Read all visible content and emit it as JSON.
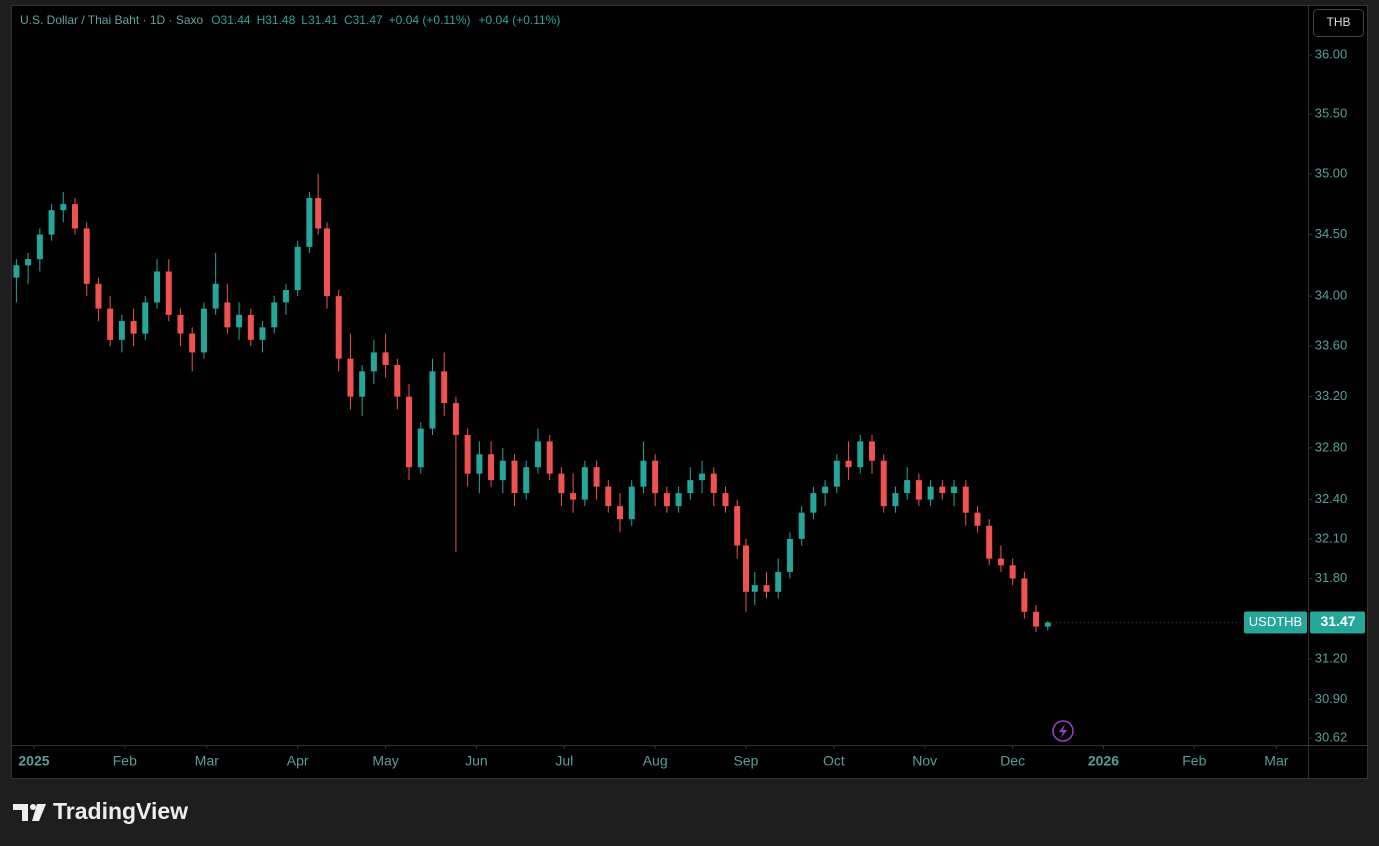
{
  "chart_data": {
    "type": "candlestick",
    "title": "U.S. Dollar / Thai Baht · 1D · Saxo",
    "legend_values": [
      "O31.44",
      "H31.48",
      "L31.41",
      "C31.47",
      "+0.04 (+0.11%)",
      "+0.04 (+0.11%)"
    ],
    "currency": "THB",
    "symbol": "USDTHB",
    "last_price": 31.47,
    "up_color": "#26a69a",
    "down_color": "#ef5350",
    "log_scale": true,
    "x": [
      -6,
      -2,
      2,
      6,
      10,
      14,
      18,
      22,
      26,
      30,
      34,
      38,
      42,
      46,
      50,
      54,
      58,
      62,
      66,
      70,
      74,
      78,
      82,
      86,
      90,
      94,
      97,
      100,
      104,
      108,
      112,
      116,
      120,
      124,
      128,
      132,
      136,
      140,
      144,
      148,
      152,
      156,
      160,
      164,
      168,
      172,
      176,
      180,
      184,
      188,
      192,
      196,
      200,
      204,
      208,
      212,
      216,
      220,
      224,
      228,
      232,
      236,
      240,
      243,
      246,
      250,
      254,
      258,
      262,
      266,
      270,
      274,
      278,
      282,
      286,
      290,
      294,
      298,
      302,
      306,
      310,
      314,
      318,
      322,
      326,
      330,
      334,
      338,
      342,
      346
    ],
    "open": [
      34.15,
      34.25,
      34.3,
      34.5,
      34.7,
      34.75,
      34.55,
      34.1,
      33.9,
      33.65,
      33.8,
      33.7,
      33.95,
      34.2,
      33.85,
      33.7,
      33.55,
      33.9,
      33.95,
      33.75,
      33.85,
      33.65,
      33.75,
      33.95,
      34.05,
      34.4,
      34.8,
      34.55,
      34.0,
      33.5,
      33.2,
      33.4,
      33.55,
      33.45,
      33.2,
      32.65,
      32.95,
      33.4,
      33.15,
      32.9,
      32.6,
      32.75,
      32.55,
      32.7,
      32.45,
      32.65,
      32.85,
      32.6,
      32.45,
      32.4,
      32.65,
      32.5,
      32.35,
      32.25,
      32.5,
      32.7,
      32.45,
      32.35,
      32.45,
      32.55,
      32.6,
      32.45,
      32.35,
      32.05,
      31.7,
      31.75,
      31.7,
      31.85,
      32.1,
      32.3,
      32.45,
      32.5,
      32.7,
      32.65,
      32.85,
      32.7,
      32.35,
      32.45,
      32.55,
      32.4,
      32.5,
      32.45,
      32.5,
      32.3,
      32.2,
      31.95,
      31.9,
      31.8,
      31.55,
      31.44
    ],
    "high": [
      34.3,
      34.35,
      34.55,
      34.75,
      34.85,
      34.8,
      34.6,
      34.15,
      34.0,
      33.85,
      33.9,
      34.0,
      34.3,
      34.3,
      33.9,
      33.75,
      33.95,
      34.35,
      34.1,
      33.95,
      33.9,
      33.8,
      34.0,
      34.1,
      34.45,
      34.85,
      35.0,
      34.6,
      34.05,
      33.7,
      33.45,
      33.65,
      33.7,
      33.5,
      33.3,
      33.0,
      33.5,
      33.55,
      33.2,
      32.95,
      32.85,
      32.85,
      32.8,
      32.75,
      32.7,
      32.95,
      32.9,
      32.65,
      32.6,
      32.7,
      32.7,
      32.55,
      32.45,
      32.55,
      32.85,
      32.75,
      32.5,
      32.5,
      32.65,
      32.7,
      32.65,
      32.5,
      32.4,
      32.1,
      31.85,
      31.85,
      31.95,
      32.15,
      32.35,
      32.5,
      32.55,
      32.75,
      32.85,
      32.9,
      32.9,
      32.75,
      32.5,
      32.65,
      32.6,
      32.55,
      32.55,
      32.55,
      32.55,
      32.35,
      32.25,
      32.05,
      31.95,
      31.85,
      31.6,
      31.48
    ],
    "low": [
      33.95,
      34.1,
      34.2,
      34.45,
      34.6,
      34.5,
      34.0,
      33.8,
      33.6,
      33.55,
      33.6,
      33.65,
      33.9,
      33.8,
      33.6,
      33.4,
      33.5,
      33.85,
      33.7,
      33.65,
      33.6,
      33.55,
      33.7,
      33.85,
      34.0,
      34.35,
      34.5,
      33.9,
      33.4,
      33.1,
      33.05,
      33.3,
      33.35,
      33.1,
      32.55,
      32.6,
      32.9,
      33.05,
      32.0,
      32.5,
      32.45,
      32.5,
      32.45,
      32.35,
      32.4,
      32.6,
      32.55,
      32.35,
      32.3,
      32.35,
      32.4,
      32.3,
      32.15,
      32.2,
      32.45,
      32.35,
      32.3,
      32.3,
      32.4,
      32.45,
      32.35,
      32.3,
      31.95,
      31.55,
      31.6,
      31.65,
      31.65,
      31.8,
      32.05,
      32.25,
      32.35,
      32.45,
      32.55,
      32.6,
      32.6,
      32.3,
      32.3,
      32.4,
      32.35,
      32.35,
      32.4,
      32.35,
      32.2,
      32.15,
      31.9,
      31.85,
      31.75,
      31.5,
      31.4,
      31.41
    ],
    "close": [
      34.25,
      34.3,
      34.5,
      34.7,
      34.75,
      34.55,
      34.1,
      33.9,
      33.65,
      33.8,
      33.7,
      33.95,
      34.2,
      33.85,
      33.7,
      33.55,
      33.9,
      34.1,
      33.75,
      33.85,
      33.65,
      33.75,
      33.95,
      34.05,
      34.4,
      34.8,
      34.55,
      34.0,
      33.5,
      33.2,
      33.4,
      33.55,
      33.45,
      33.2,
      32.65,
      32.95,
      33.4,
      33.15,
      32.9,
      32.6,
      32.75,
      32.55,
      32.7,
      32.45,
      32.65,
      32.85,
      32.6,
      32.45,
      32.4,
      32.65,
      32.5,
      32.35,
      32.25,
      32.5,
      32.7,
      32.45,
      32.35,
      32.45,
      32.55,
      32.6,
      32.45,
      32.35,
      32.05,
      31.7,
      31.75,
      31.7,
      31.85,
      32.1,
      32.3,
      32.45,
      32.5,
      32.7,
      32.65,
      32.85,
      32.7,
      32.35,
      32.45,
      32.55,
      32.4,
      32.5,
      32.45,
      32.5,
      32.3,
      32.2,
      31.95,
      31.9,
      31.8,
      31.55,
      31.44,
      31.47
    ],
    "xlim": [
      -7.5,
      434.8
    ],
    "xticks": [
      {
        "value": 0,
        "label": "2025"
      },
      {
        "value": 31,
        "label": "Feb"
      },
      {
        "value": 59,
        "label": "Mar"
      },
      {
        "value": 90,
        "label": "Apr"
      },
      {
        "value": 120,
        "label": "May"
      },
      {
        "value": 151,
        "label": "Jun"
      },
      {
        "value": 181,
        "label": "Jul"
      },
      {
        "value": 212,
        "label": "Aug"
      },
      {
        "value": 243,
        "label": "Sep"
      },
      {
        "value": 273,
        "label": "Oct"
      },
      {
        "value": 304,
        "label": "Nov"
      },
      {
        "value": 334,
        "label": "Dec"
      },
      {
        "value": 365,
        "label": "2026"
      },
      {
        "value": 396,
        "label": "Feb"
      },
      {
        "value": 424,
        "label": "Mar"
      }
    ],
    "ylim": [
      30.57,
      36.42
    ],
    "yticks": [
      {
        "value": 30.62,
        "label": "30.62"
      },
      {
        "value": 30.9,
        "label": "30.90"
      },
      {
        "value": 31.2,
        "label": "31.20"
      },
      {
        "value": 31.8,
        "label": "31.80"
      },
      {
        "value": 32.1,
        "label": "32.10"
      },
      {
        "value": 32.4,
        "label": "32.40"
      },
      {
        "value": 32.8,
        "label": "32.80"
      },
      {
        "value": 33.2,
        "label": "33.20"
      },
      {
        "value": 33.6,
        "label": "33.60"
      },
      {
        "value": 34,
        "label": "34.00"
      },
      {
        "value": 34.5,
        "label": "34.50"
      },
      {
        "value": 35,
        "label": "35.00"
      },
      {
        "value": 35.5,
        "label": "35.50"
      },
      {
        "value": 36,
        "label": "36.00"
      }
    ]
  },
  "brand": "TradingView"
}
